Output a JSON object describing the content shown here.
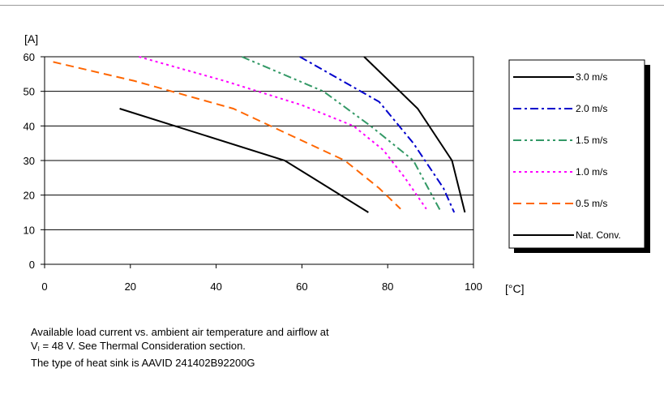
{
  "chart_data": {
    "type": "line",
    "ylabel": "[A]",
    "xlabel": "[°C]",
    "xlim": [
      0,
      100
    ],
    "ylim": [
      0,
      60
    ],
    "xticks": [
      0,
      20,
      40,
      60,
      80,
      100
    ],
    "yticks": [
      0,
      10,
      20,
      30,
      40,
      50,
      60
    ],
    "grid": "horizontal",
    "legend_position": "right",
    "series": [
      {
        "name": "3.0 m/s",
        "color": "#000000",
        "dash": "solid",
        "points": [
          [
            74.5,
            60
          ],
          [
            87,
            45
          ],
          [
            95,
            30
          ],
          [
            98,
            15
          ]
        ]
      },
      {
        "name": "2.0 m/s",
        "color": "#0000cc",
        "dash": "dashdot",
        "points": [
          [
            59.5,
            60
          ],
          [
            78,
            47
          ],
          [
            86,
            35
          ],
          [
            93,
            22
          ],
          [
            95.5,
            15
          ]
        ]
      },
      {
        "name": "1.5 m/s",
        "color": "#339966",
        "dash": "dashdotdot",
        "points": [
          [
            46,
            60
          ],
          [
            65,
            50
          ],
          [
            76,
            40
          ],
          [
            86,
            30
          ],
          [
            89,
            23
          ],
          [
            92.5,
            15
          ]
        ]
      },
      {
        "name": "1.0 m/s",
        "color": "#ff00ff",
        "dash": "dotted",
        "points": [
          [
            22,
            60
          ],
          [
            42,
            53
          ],
          [
            60,
            46
          ],
          [
            72,
            40
          ],
          [
            79,
            33
          ],
          [
            84,
            25
          ],
          [
            89,
            16
          ]
        ]
      },
      {
        "name": "0.5 m/s",
        "color": "#ff6600",
        "dash": "dashed",
        "points": [
          [
            2,
            58.5
          ],
          [
            21,
            53
          ],
          [
            44,
            45
          ],
          [
            70,
            30
          ],
          [
            78,
            22
          ],
          [
            83,
            16
          ]
        ]
      },
      {
        "name": "Nat. Conv.",
        "color": "#000000",
        "dash": "solid",
        "points": [
          [
            17.5,
            45
          ],
          [
            56,
            30
          ],
          [
            75.5,
            15
          ]
        ]
      }
    ]
  },
  "caption": {
    "line1": "Available load current vs. ambient air temperature and airflow at",
    "line2_prefix": "V",
    "line2_sub": "I",
    "line2_suffix": " = 48 V. See Thermal Consideration section.",
    "line3": "The type of heat sink is AAVID 241402B92200G"
  }
}
